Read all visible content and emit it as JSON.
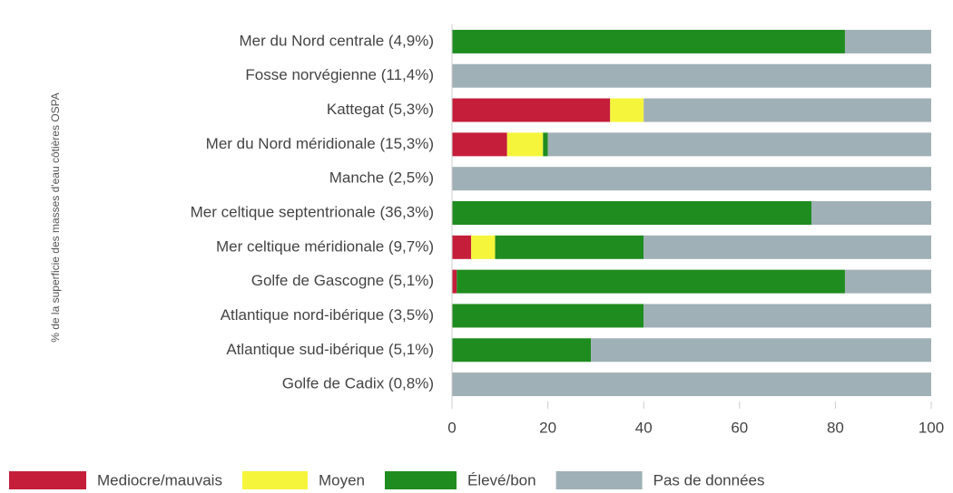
{
  "chart_data": {
    "type": "stacked_barh",
    "y_label": "% de la superficie des masses d'eau côtières OSPA",
    "categories": [
      "Mer du Nord centrale (4,9%)",
      "Fosse norvégienne (11,4%)",
      "Kattegat (5,3%)",
      "Mer du Nord méridionale (15,3%)",
      "Manche (2,5%)",
      "Mer celtique septentrionale (36,3%)",
      "Mer celtique méridionale (9,7%)",
      "Golfe de Gascogne (5,1%)",
      "Atlantique nord-ibérique (3,5%)",
      "Atlantique sud-ibérique (5,1%)",
      "Golfe de Cadix (0,8%)"
    ],
    "series": [
      {
        "name": "Mediocre/mauvais",
        "color": "#c41e3a",
        "values": [
          0,
          0,
          33,
          11.5,
          0,
          0,
          4,
          1,
          0,
          0,
          0
        ]
      },
      {
        "name": "Moyen",
        "color": "#f5f53c",
        "values": [
          0,
          0,
          7,
          7.5,
          0,
          0,
          5,
          0,
          0,
          0,
          0
        ]
      },
      {
        "name": "Élevé/bon",
        "color": "#1f8c1f",
        "values": [
          82,
          0,
          0,
          1,
          0,
          75,
          31,
          81,
          40,
          29,
          0
        ]
      },
      {
        "name": "Pas de données",
        "color": "#9fb0b6",
        "values": [
          18,
          100,
          60,
          80,
          100,
          25,
          60,
          18,
          60,
          71,
          100
        ]
      }
    ],
    "xlim": [
      0,
      100
    ],
    "xticks": [
      0,
      20,
      40,
      60,
      80,
      100
    ]
  }
}
